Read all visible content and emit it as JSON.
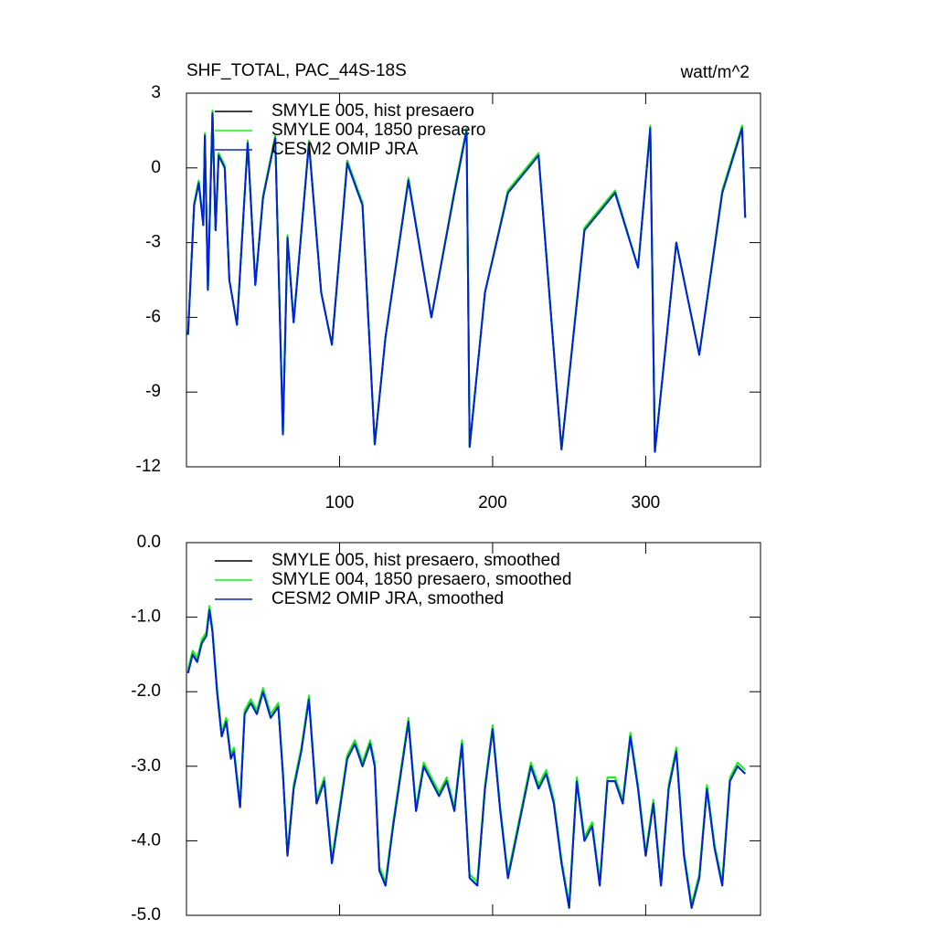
{
  "chart_data": [
    {
      "type": "line",
      "title": "SHF_TOTAL, PAC_44S-18S",
      "units": "watt/m^2",
      "xlim": [
        0,
        375
      ],
      "xticks": [
        100,
        200,
        300
      ],
      "xtick_labels": true,
      "ylim": [
        -12,
        3
      ],
      "yticks": [
        -12,
        -9,
        -6,
        -3,
        0,
        3
      ],
      "x": [
        1,
        5,
        8,
        11,
        12,
        14,
        17,
        19,
        21,
        25,
        28,
        33,
        40,
        45,
        50,
        58,
        63,
        66,
        70,
        80,
        88,
        95,
        105,
        115,
        123,
        130,
        145,
        160,
        175,
        183,
        185,
        195,
        210,
        230,
        245,
        260,
        280,
        295,
        303,
        306,
        320,
        335,
        350,
        363,
        365
      ],
      "series": [
        {
          "name": "SMYLE 005, hist presaero",
          "color": "#000000",
          "values": [
            -6.7,
            -1.5,
            -0.6,
            -2.3,
            1.3,
            -4.9,
            2.2,
            -2.5,
            0.5,
            0,
            -4.5,
            -6.3,
            1.0,
            -4.7,
            -1.2,
            1.2,
            -10.7,
            -2.8,
            -6.2,
            1.0,
            -5.0,
            -7.1,
            0.2,
            -1.5,
            -11.1,
            -6.8,
            -0.5,
            -6.0,
            -1.0,
            1.5,
            -11.2,
            -5.0,
            -1.0,
            0.5,
            -11.3,
            -2.5,
            -1.0,
            -4.0,
            1.6,
            -11.4,
            -3.0,
            -7.5,
            -1.0,
            1.6,
            -2.0
          ]
        },
        {
          "name": "SMYLE 004, 1850 presaero",
          "color": "#00ff00",
          "values": [
            -6.7,
            -1.4,
            -0.5,
            -2.2,
            1.4,
            -4.9,
            2.3,
            -2.4,
            0.6,
            0.1,
            -4.5,
            -6.3,
            1.1,
            -4.7,
            -1.1,
            1.3,
            -10.7,
            -2.7,
            -6.2,
            1.1,
            -5.0,
            -7.1,
            0.3,
            -1.4,
            -11.1,
            -6.8,
            -0.4,
            -6.0,
            -0.9,
            1.6,
            -11.2,
            -5.0,
            -0.9,
            0.6,
            -11.3,
            -2.4,
            -0.9,
            -4.0,
            1.7,
            -11.4,
            -3.0,
            -7.5,
            -0.9,
            1.7,
            -1.9
          ]
        },
        {
          "name": "CESM2 OMIP JRA",
          "color": "#0022dd",
          "values": [
            -6.7,
            -1.5,
            -0.6,
            -2.3,
            1.3,
            -4.9,
            2.2,
            -2.5,
            0.5,
            0,
            -4.5,
            -6.3,
            1.0,
            -4.7,
            -1.2,
            1.2,
            -10.7,
            -2.8,
            -6.2,
            1.0,
            -5.0,
            -7.1,
            0.2,
            -1.5,
            -11.1,
            -6.8,
            -0.5,
            -6.0,
            -1.0,
            1.5,
            -11.2,
            -5.0,
            -1.0,
            0.5,
            -11.3,
            -2.5,
            -1.0,
            -4.0,
            1.6,
            -11.4,
            -3.0,
            -7.5,
            -1.0,
            1.6,
            -2.0
          ]
        }
      ]
    },
    {
      "type": "line",
      "xlim": [
        0,
        375
      ],
      "xticks": [
        100,
        200,
        300
      ],
      "xtick_labels": false,
      "ylim": [
        -5,
        0
      ],
      "yticks": [
        {
          "value": -5,
          "label": "-5.0"
        },
        {
          "value": -4,
          "label": "-4.0"
        },
        {
          "value": -3,
          "label": "-3.0"
        },
        {
          "value": -2,
          "label": "-2.0"
        },
        {
          "value": -1,
          "label": "-1.0"
        },
        {
          "value": 0,
          "label": "0.0"
        }
      ],
      "x": [
        1,
        4,
        7,
        10,
        13,
        15,
        17,
        20,
        23,
        26,
        29,
        31,
        35,
        38,
        42,
        46,
        50,
        55,
        60,
        63,
        66,
        70,
        75,
        80,
        85,
        90,
        95,
        100,
        105,
        110,
        115,
        120,
        123,
        126,
        130,
        135,
        140,
        145,
        150,
        155,
        160,
        165,
        170,
        175,
        180,
        185,
        190,
        195,
        200,
        205,
        210,
        215,
        220,
        225,
        230,
        235,
        240,
        245,
        250,
        255,
        260,
        265,
        270,
        275,
        280,
        285,
        290,
        295,
        300,
        305,
        310,
        315,
        320,
        325,
        330,
        335,
        340,
        345,
        350,
        355,
        360,
        365
      ],
      "series": [
        {
          "name": "SMYLE 005, hist presaero, smoothed",
          "color": "#000000",
          "values": [
            -1.75,
            -1.5,
            -1.6,
            -1.35,
            -1.25,
            -0.9,
            -1.2,
            -2.0,
            -2.6,
            -2.4,
            -2.9,
            -2.8,
            -3.55,
            -2.3,
            -2.15,
            -2.3,
            -2.0,
            -2.35,
            -2.2,
            -3.1,
            -4.2,
            -3.3,
            -2.8,
            -2.1,
            -3.5,
            -3.2,
            -4.3,
            -3.6,
            -2.9,
            -2.7,
            -3.0,
            -2.7,
            -3.0,
            -4.4,
            -4.6,
            -3.8,
            -3.1,
            -2.4,
            -3.6,
            -3.0,
            -3.2,
            -3.4,
            -3.2,
            -3.6,
            -2.7,
            -4.5,
            -4.6,
            -3.3,
            -2.5,
            -3.6,
            -4.5,
            -4.0,
            -3.5,
            -3.0,
            -3.3,
            -3.1,
            -3.5,
            -4.3,
            -4.9,
            -3.2,
            -4.0,
            -3.8,
            -4.6,
            -3.2,
            -3.2,
            -3.5,
            -2.6,
            -3.3,
            -4.2,
            -3.5,
            -4.6,
            -3.3,
            -2.8,
            -4.2,
            -4.9,
            -4.5,
            -3.3,
            -4.1,
            -4.6,
            -3.2,
            -3.0,
            -3.1
          ]
        },
        {
          "name": "SMYLE 004, 1850 presaero, smoothed",
          "color": "#00ff00",
          "values": [
            -1.7,
            -1.45,
            -1.55,
            -1.3,
            -1.2,
            -0.85,
            -1.15,
            -1.95,
            -2.55,
            -2.35,
            -2.85,
            -2.75,
            -3.5,
            -2.25,
            -2.1,
            -2.25,
            -1.95,
            -2.3,
            -2.15,
            -3.05,
            -4.15,
            -3.25,
            -2.75,
            -2.05,
            -3.45,
            -3.15,
            -4.25,
            -3.55,
            -2.85,
            -2.65,
            -2.95,
            -2.65,
            -2.95,
            -4.35,
            -4.55,
            -3.75,
            -3.05,
            -2.35,
            -3.55,
            -2.95,
            -3.15,
            -3.35,
            -3.15,
            -3.55,
            -2.65,
            -4.45,
            -4.55,
            -3.25,
            -2.45,
            -3.55,
            -4.45,
            -3.95,
            -3.45,
            -2.95,
            -3.25,
            -3.05,
            -3.45,
            -4.25,
            -4.85,
            -3.15,
            -3.95,
            -3.75,
            -4.55,
            -3.15,
            -3.15,
            -3.45,
            -2.55,
            -3.25,
            -4.15,
            -3.45,
            -4.55,
            -3.25,
            -2.75,
            -4.15,
            -4.85,
            -4.45,
            -3.25,
            -4.05,
            -4.55,
            -3.15,
            -2.95,
            -3.05
          ]
        },
        {
          "name": "CESM2 OMIP JRA, smoothed",
          "color": "#0022dd",
          "values": [
            -1.75,
            -1.5,
            -1.6,
            -1.35,
            -1.25,
            -0.9,
            -1.2,
            -2.0,
            -2.6,
            -2.4,
            -2.9,
            -2.8,
            -3.55,
            -2.3,
            -2.15,
            -2.3,
            -2.0,
            -2.35,
            -2.2,
            -3.1,
            -4.2,
            -3.3,
            -2.8,
            -2.1,
            -3.5,
            -3.2,
            -4.3,
            -3.6,
            -2.9,
            -2.7,
            -3.0,
            -2.7,
            -3.0,
            -4.4,
            -4.6,
            -3.8,
            -3.1,
            -2.4,
            -3.6,
            -3.0,
            -3.2,
            -3.4,
            -3.2,
            -3.6,
            -2.7,
            -4.5,
            -4.6,
            -3.3,
            -2.5,
            -3.6,
            -4.5,
            -4.0,
            -3.5,
            -3.0,
            -3.3,
            -3.1,
            -3.5,
            -4.3,
            -4.9,
            -3.2,
            -4.0,
            -3.8,
            -4.6,
            -3.2,
            -3.2,
            -3.5,
            -2.6,
            -3.3,
            -4.2,
            -3.5,
            -4.6,
            -3.3,
            -2.8,
            -4.2,
            -4.9,
            -4.5,
            -3.3,
            -4.1,
            -4.6,
            -3.2,
            -3.0,
            -3.1
          ]
        }
      ]
    }
  ]
}
